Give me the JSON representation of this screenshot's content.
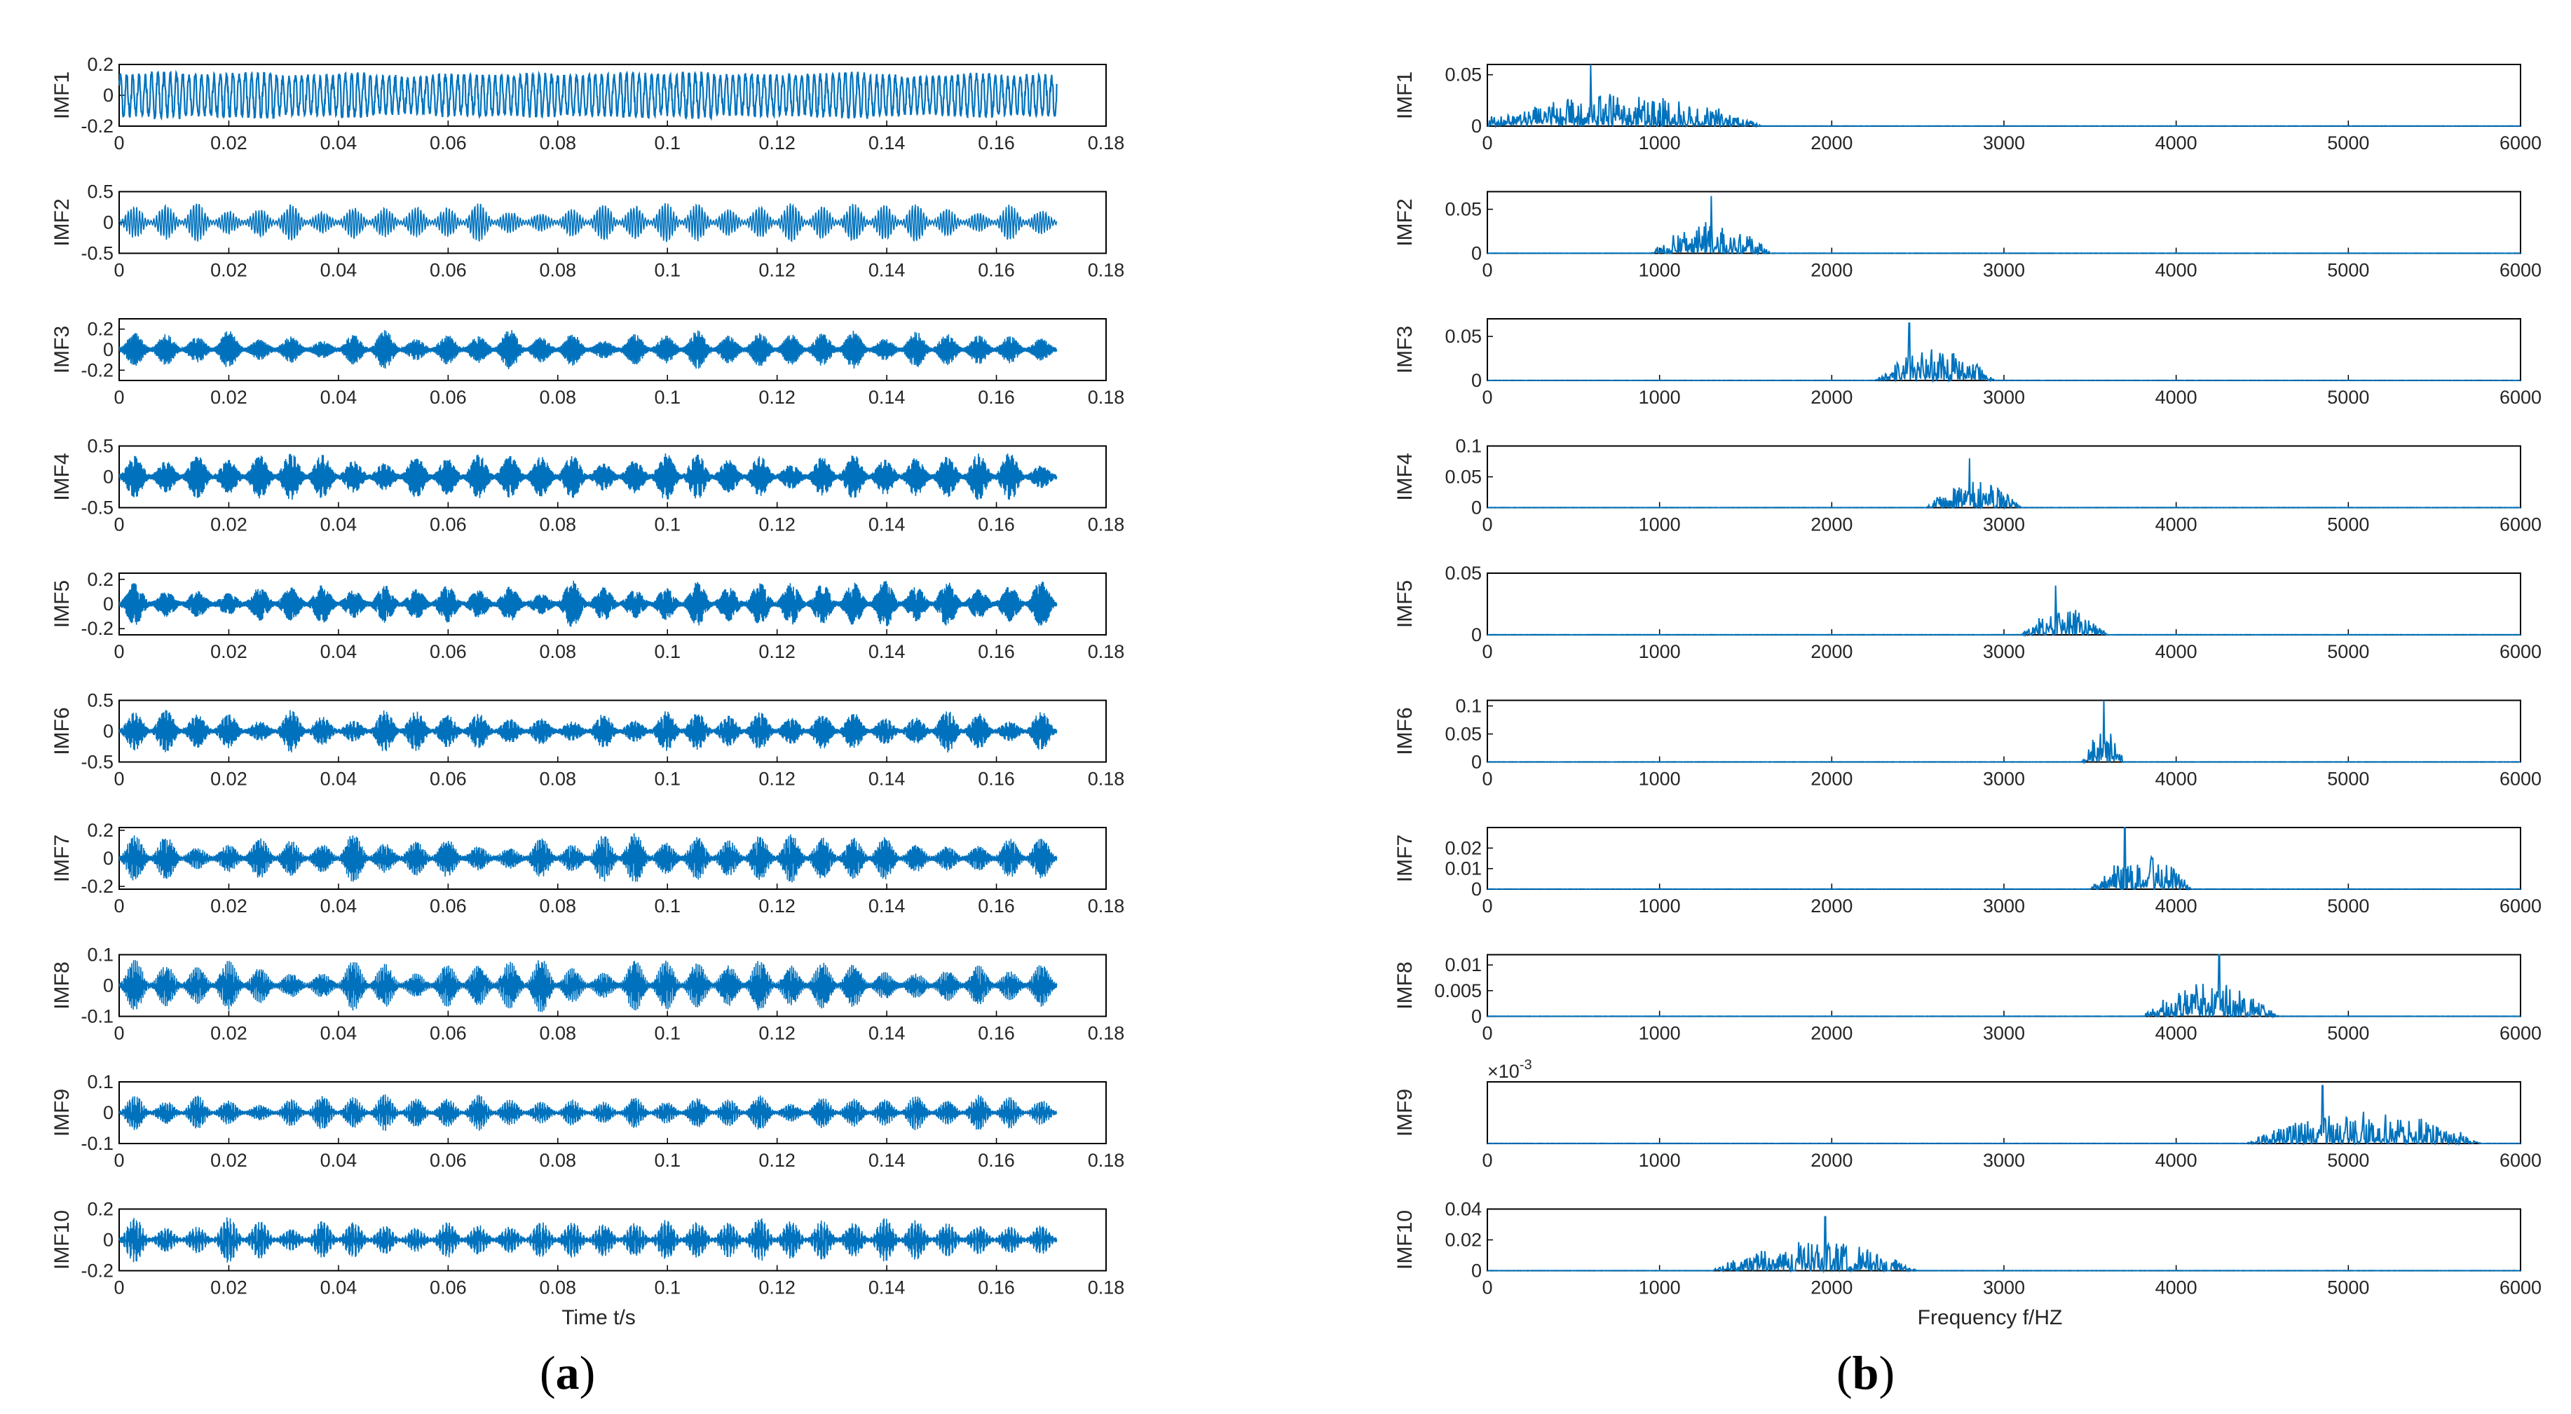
{
  "colors": {
    "line": "#0072BD",
    "axis": "#000000",
    "text": "#262626"
  },
  "panels": [
    {
      "label": "(a)",
      "label_letter": "a"
    },
    {
      "label": "(b)",
      "label_letter": "b"
    }
  ],
  "chart_data": [
    {
      "type": "line",
      "panel": "a",
      "title": "",
      "xlabel": "Time t/s",
      "description": "Time-domain waveforms of IMF1–IMF10 (dense oscillatory signals with burst envelopes)",
      "xlim": [
        0,
        0.18
      ],
      "xticks": [
        0,
        0.02,
        0.04,
        0.06,
        0.08,
        0.1,
        0.12,
        0.14,
        0.16,
        0.18
      ],
      "xtick_labels": [
        "0",
        "0.02",
        "0.04",
        "0.06",
        "0.08",
        "0.1",
        "0.12",
        "0.14",
        "0.16",
        "0.18"
      ],
      "signal_end": 0.171,
      "subplots": [
        {
          "name": "IMF1",
          "ylabel": "IMF1",
          "ylim": [
            -0.2,
            0.2
          ],
          "yticks": [
            "0.2",
            "0",
            "-0.2"
          ],
          "amp": 0.15,
          "carrier_cycles": 150
        },
        {
          "name": "IMF2",
          "ylabel": "IMF2",
          "ylim": [
            -0.5,
            0.5
          ],
          "yticks": [
            "0.5",
            "0",
            "-0.5"
          ],
          "amp": 0.32,
          "carrier_cycles": 330
        },
        {
          "name": "IMF3",
          "ylabel": "IMF3",
          "ylim": [
            -0.3,
            0.3
          ],
          "yticks": [
            "0.2",
            "0",
            "-0.2"
          ],
          "amp": 0.2,
          "carrier_cycles": 700
        },
        {
          "name": "IMF4",
          "ylabel": "IMF4",
          "ylim": [
            -0.5,
            0.5
          ],
          "yticks": [
            "0.5",
            "0",
            "-0.5"
          ],
          "amp": 0.4,
          "carrier_cycles": 800
        },
        {
          "name": "IMF5",
          "ylabel": "IMF5",
          "ylim": [
            -0.25,
            0.25
          ],
          "yticks": [
            "0.2",
            "0",
            "-0.2"
          ],
          "amp": 0.2,
          "carrier_cycles": 900
        },
        {
          "name": "IMF6",
          "ylabel": "IMF6",
          "ylim": [
            -0.5,
            0.5
          ],
          "yticks": [
            "0.5",
            "0",
            "-0.5"
          ],
          "amp": 0.35,
          "carrier_cycles": 950
        },
        {
          "name": "IMF7",
          "ylabel": "IMF7",
          "ylim": [
            -0.22,
            0.22
          ],
          "yticks": [
            "0.2",
            "0",
            "-0.2"
          ],
          "amp": 0.18,
          "carrier_cycles": 1000
        },
        {
          "name": "IMF8",
          "ylabel": "IMF8",
          "ylim": [
            -0.1,
            0.1
          ],
          "yticks": [
            "0.1",
            "0",
            "-0.1"
          ],
          "amp": 0.09,
          "carrier_cycles": 1050
        },
        {
          "name": "IMF9",
          "ylabel": "IMF9",
          "ylim": [
            -0.1,
            0.1
          ],
          "yticks": [
            "0.1",
            "0",
            "-0.1"
          ],
          "amp": 0.06,
          "carrier_cycles": 1100
        },
        {
          "name": "IMF10",
          "ylabel": "IMF10",
          "ylim": [
            -0.2,
            0.2
          ],
          "yticks": [
            "0.2",
            "0",
            "-0.2"
          ],
          "amp": 0.15,
          "carrier_cycles": 1150
        }
      ]
    },
    {
      "type": "line",
      "panel": "b",
      "title": "",
      "xlabel": "Frequency f/HZ",
      "description": "Amplitude spectra of IMF1–IMF10",
      "xlim": [
        0,
        6000
      ],
      "xticks": [
        0,
        1000,
        2000,
        3000,
        4000,
        5000,
        6000
      ],
      "xtick_labels": [
        "0",
        "1000",
        "2000",
        "3000",
        "4000",
        "5000",
        "6000"
      ],
      "subplots": [
        {
          "name": "IMF1",
          "ylabel": "IMF1",
          "ylim": [
            0,
            0.06
          ],
          "yticks": [
            0,
            0.05
          ],
          "ytick_labels": [
            "0",
            "0.05"
          ],
          "band": [
            0,
            1600
          ],
          "peak_freq": 600,
          "peak_value": 0.06
        },
        {
          "name": "IMF2",
          "ylabel": "IMF2",
          "ylim": [
            0,
            0.07
          ],
          "yticks": [
            0,
            0.05
          ],
          "ytick_labels": [
            "0",
            "0.05"
          ],
          "band": [
            950,
            1650
          ],
          "peak_freq": 1300,
          "peak_value": 0.065
        },
        {
          "name": "IMF3",
          "ylabel": "IMF3",
          "ylim": [
            0,
            0.07
          ],
          "yticks": [
            0,
            0.05
          ],
          "ytick_labels": [
            "0",
            "0.05"
          ],
          "band": [
            2250,
            2950
          ],
          "peak_freq": 2450,
          "peak_value": 0.065
        },
        {
          "name": "IMF4",
          "ylabel": "IMF4",
          "ylim": [
            0,
            0.1
          ],
          "yticks": [
            0,
            0.05,
            0.1
          ],
          "ytick_labels": [
            "0",
            "0.05",
            "0.1"
          ],
          "band": [
            2550,
            3100
          ],
          "peak_freq": 2800,
          "peak_value": 0.08
        },
        {
          "name": "IMF5",
          "ylabel": "IMF5",
          "ylim": [
            0,
            0.05
          ],
          "yticks": [
            0,
            0.05
          ],
          "ytick_labels": [
            "0",
            "0.05"
          ],
          "band": [
            3100,
            3600
          ],
          "peak_freq": 3300,
          "peak_value": 0.04
        },
        {
          "name": "IMF6",
          "ylabel": "IMF6",
          "ylim": [
            0,
            0.11
          ],
          "yticks": [
            0,
            0.05,
            0.1
          ],
          "ytick_labels": [
            "0",
            "0.05",
            "0.1"
          ],
          "band": [
            3450,
            3700
          ],
          "peak_freq": 3580,
          "peak_value": 0.11
        },
        {
          "name": "IMF7",
          "ylabel": "IMF7",
          "ylim": [
            0,
            0.03
          ],
          "yticks": [
            0,
            0.01,
            0.02
          ],
          "ytick_labels": [
            "0",
            "0.01",
            "0.02"
          ],
          "band": [
            3500,
            4100
          ],
          "peak_freq": 3700,
          "peak_value": 0.03
        },
        {
          "name": "IMF8",
          "ylabel": "IMF8",
          "ylim": [
            0,
            0.012
          ],
          "yticks": [
            0,
            0.005,
            0.01
          ],
          "ytick_labels": [
            "0",
            "0.005",
            "0.01"
          ],
          "band": [
            3800,
            4600
          ],
          "peak_freq": 4250,
          "peak_value": 0.012
        },
        {
          "name": "IMF9",
          "ylabel": "IMF9",
          "ylim": [
            0,
            8
          ],
          "yticks": [],
          "ytick_labels": [],
          "exponent_label": "×10",
          "exponent_power": "-3",
          "band": [
            4400,
            5800
          ],
          "peak_freq": 4850,
          "peak_value": 7.5
        },
        {
          "name": "IMF10",
          "ylabel": "IMF10",
          "ylim": [
            0,
            0.04
          ],
          "yticks": [
            0,
            0.02,
            0.04
          ],
          "ytick_labels": [
            "0",
            "0.02",
            "0.04"
          ],
          "band": [
            1300,
            2500
          ],
          "peak_freq": 1960,
          "peak_value": 0.035
        }
      ]
    }
  ]
}
